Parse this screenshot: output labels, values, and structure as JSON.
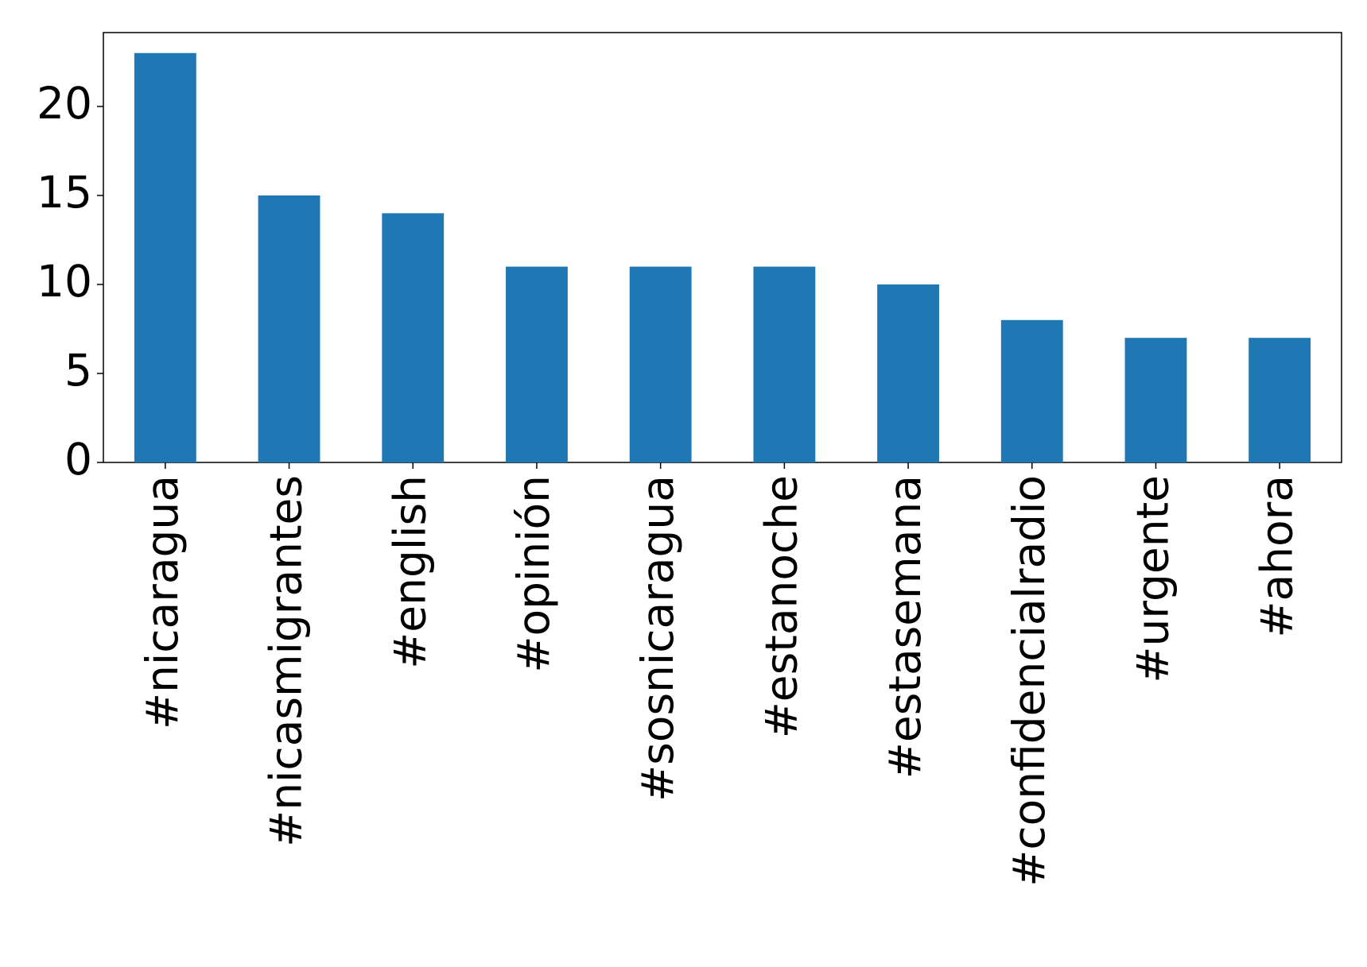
{
  "chart_data": {
    "type": "bar",
    "categories": [
      "#nicaragua",
      "#nicasmigrantes",
      "#english",
      "#opinión",
      "#sosnicaragua",
      "#estanoche",
      "#estasemana",
      "#confidencialradio",
      "#urgente",
      "#ahora"
    ],
    "values": [
      23,
      15,
      14,
      11,
      11,
      11,
      10,
      8,
      7,
      7
    ],
    "color": "#1f77b4",
    "ylim": [
      0,
      24.15
    ],
    "yticks": [
      0,
      5,
      10,
      15,
      20
    ],
    "grid": false
  }
}
